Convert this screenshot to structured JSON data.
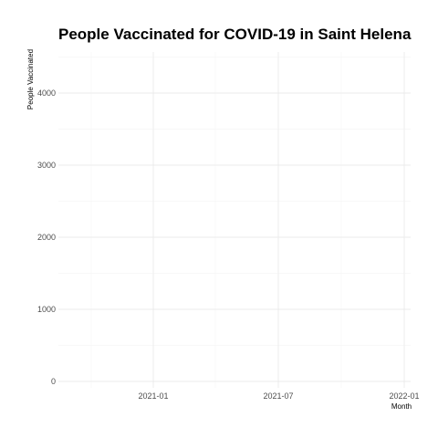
{
  "chart_data": {
    "type": "line",
    "title": "People Vaccinated for COVID-19 in Saint Helena",
    "xlabel": "Month",
    "ylabel": "People Vaccinated",
    "x_ticks": [
      "2021-01",
      "2021-07",
      "2022-01"
    ],
    "y_ticks": [
      0,
      1000,
      2000,
      3000,
      4000
    ],
    "ylim": [
      0,
      4550
    ],
    "grid": true,
    "legend": "none",
    "series": [
      {
        "x": [],
        "y": []
      }
    ]
  }
}
